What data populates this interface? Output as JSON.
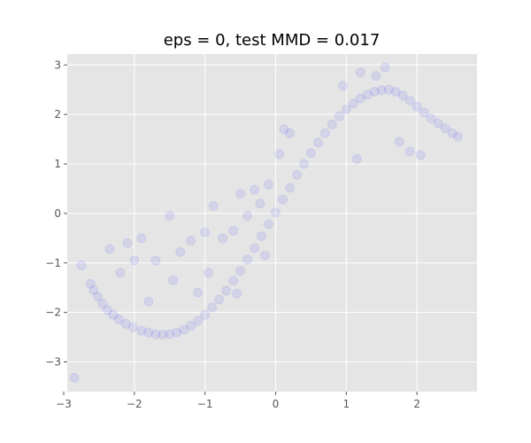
{
  "chart_data": {
    "type": "scatter",
    "title": "eps = 0, test MMD = 0.017",
    "xlabel": "",
    "ylabel": "",
    "xlim": [
      -2.95,
      2.85
    ],
    "ylim": [
      -3.6,
      3.22
    ],
    "xticks": [
      -3,
      -2,
      -1,
      0,
      1,
      2
    ],
    "yticks": [
      -3,
      -2,
      -1,
      0,
      1,
      2,
      3
    ],
    "xtick_labels": [
      "−3",
      "−2",
      "−1",
      "0",
      "1",
      "2"
    ],
    "ytick_labels": [
      "−3",
      "−2",
      "−1",
      "0",
      "1",
      "2",
      "3"
    ],
    "grid": true,
    "style": "ggplot",
    "series": [
      {
        "color": "#0000ff",
        "alpha": 0.08,
        "points": [
          [
            -2.85,
            -3.32
          ],
          [
            -2.75,
            -1.05
          ],
          [
            -2.62,
            -1.42
          ],
          [
            -2.58,
            -1.55
          ],
          [
            -2.52,
            -1.68
          ],
          [
            -2.45,
            -1.82
          ],
          [
            -2.38,
            -1.95
          ],
          [
            -2.3,
            -2.05
          ],
          [
            -2.22,
            -2.14
          ],
          [
            -2.12,
            -2.23
          ],
          [
            -2.02,
            -2.3
          ],
          [
            -1.9,
            -2.37
          ],
          [
            -1.8,
            -2.41
          ],
          [
            -1.7,
            -2.44
          ],
          [
            -1.6,
            -2.45
          ],
          [
            -1.5,
            -2.44
          ],
          [
            -1.4,
            -2.41
          ],
          [
            -1.3,
            -2.35
          ],
          [
            -1.2,
            -2.27
          ],
          [
            -1.1,
            -2.17
          ],
          [
            -1.0,
            -2.05
          ],
          [
            -0.9,
            -1.9
          ],
          [
            -0.8,
            -1.74
          ],
          [
            -0.7,
            -1.56
          ],
          [
            -0.6,
            -1.36
          ],
          [
            -0.5,
            -1.16
          ],
          [
            -0.4,
            -0.93
          ],
          [
            -0.3,
            -0.7
          ],
          [
            -0.2,
            -0.46
          ],
          [
            -0.1,
            -0.22
          ],
          [
            0.0,
            0.02
          ],
          [
            0.1,
            0.28
          ],
          [
            0.2,
            0.52
          ],
          [
            0.3,
            0.78
          ],
          [
            0.4,
            1.0
          ],
          [
            0.5,
            1.22
          ],
          [
            0.6,
            1.43
          ],
          [
            0.7,
            1.62
          ],
          [
            0.8,
            1.8
          ],
          [
            0.9,
            1.96
          ],
          [
            1.0,
            2.1
          ],
          [
            1.1,
            2.22
          ],
          [
            1.2,
            2.32
          ],
          [
            1.3,
            2.4
          ],
          [
            1.4,
            2.46
          ],
          [
            1.5,
            2.49
          ],
          [
            1.6,
            2.5
          ],
          [
            1.7,
            2.46
          ],
          [
            1.8,
            2.38
          ],
          [
            1.9,
            2.28
          ],
          [
            2.0,
            2.16
          ],
          [
            2.1,
            2.04
          ],
          [
            2.2,
            1.92
          ],
          [
            2.3,
            1.82
          ],
          [
            2.4,
            1.72
          ],
          [
            2.5,
            1.62
          ],
          [
            2.58,
            1.55
          ],
          [
            -2.35,
            -0.72
          ],
          [
            -2.1,
            -0.6
          ],
          [
            -1.9,
            -0.5
          ],
          [
            -1.7,
            -0.95
          ],
          [
            -1.5,
            -0.05
          ],
          [
            -1.35,
            -0.78
          ],
          [
            -1.2,
            -0.55
          ],
          [
            -1.0,
            -0.38
          ],
          [
            -0.88,
            0.15
          ],
          [
            -0.75,
            -0.5
          ],
          [
            -0.6,
            -0.35
          ],
          [
            -0.5,
            0.4
          ],
          [
            -0.4,
            -0.05
          ],
          [
            -0.22,
            0.2
          ],
          [
            -0.1,
            0.58
          ],
          [
            0.05,
            1.2
          ],
          [
            0.12,
            1.7
          ],
          [
            0.2,
            1.62
          ],
          [
            -0.15,
            -0.85
          ],
          [
            -1.1,
            -1.6
          ],
          [
            -1.8,
            -1.78
          ],
          [
            -2.2,
            -1.2
          ],
          [
            -0.3,
            0.48
          ],
          [
            1.15,
            1.1
          ],
          [
            1.9,
            1.25
          ],
          [
            2.05,
            1.18
          ],
          [
            1.75,
            1.45
          ],
          [
            1.42,
            2.78
          ],
          [
            1.55,
            2.95
          ],
          [
            1.2,
            2.85
          ],
          [
            0.95,
            2.58
          ],
          [
            -0.55,
            -1.62
          ],
          [
            -0.95,
            -1.2
          ],
          [
            -1.45,
            -1.35
          ],
          [
            -2.0,
            -0.95
          ]
        ]
      }
    ]
  }
}
